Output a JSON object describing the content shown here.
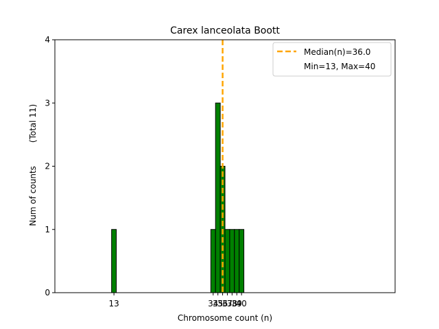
{
  "chart_data": {
    "type": "bar",
    "title": "Carex lanceolata Boott",
    "xlabel": "Chromosome count (n)",
    "ylabel": "Num of counts",
    "ylabel_total": "(Total 11)",
    "x": [
      13,
      34,
      35,
      36,
      37,
      38,
      39,
      40
    ],
    "values": [
      1,
      1,
      3,
      2,
      1,
      1,
      1,
      1
    ],
    "x_tick_labels": [
      "13",
      "34",
      "35",
      "36",
      "37",
      "38",
      "39",
      "40"
    ],
    "xlim": [
      0.5,
      72.5
    ],
    "ylim": [
      0,
      4
    ],
    "y_ticks": [
      0,
      1,
      2,
      3,
      4
    ],
    "bar_color": "#008000",
    "bar_edge_color": "#000000",
    "median": 36.0,
    "median_color": "#FFA500",
    "legend": {
      "placement": "top-right",
      "entries": [
        "Median(n)=36.0",
        "Min=13, Max=40"
      ]
    },
    "grid": false
  }
}
